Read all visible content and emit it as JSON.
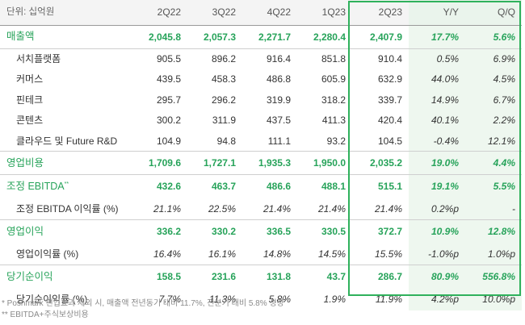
{
  "header": {
    "unit": "단위: 십억원",
    "columns": [
      "2Q22",
      "3Q22",
      "4Q22",
      "1Q23",
      "2Q23",
      "Y/Y",
      "Q/Q"
    ]
  },
  "rows": [
    {
      "label": "매출액",
      "values": [
        "2,045.8",
        "2,057.3",
        "2,271.7",
        "2,280.4",
        "2,407.9",
        "17.7%",
        "5.6%"
      ]
    },
    {
      "label": "서치플랫폼",
      "values": [
        "905.5",
        "896.2",
        "916.4",
        "851.8",
        "910.4",
        "0.5%",
        "6.9%"
      ]
    },
    {
      "label": "커머스",
      "values": [
        "439.5",
        "458.3",
        "486.8",
        "605.9",
        "632.9",
        "44.0%",
        "4.5%"
      ]
    },
    {
      "label": "핀테크",
      "values": [
        "295.7",
        "296.2",
        "319.9",
        "318.2",
        "339.7",
        "14.9%",
        "6.7%"
      ]
    },
    {
      "label": "콘텐츠",
      "values": [
        "300.2",
        "311.9",
        "437.5",
        "411.3",
        "420.4",
        "40.1%",
        "2.2%"
      ]
    },
    {
      "label": "클라우드 및 Future R&D",
      "values": [
        "104.9",
        "94.8",
        "111.1",
        "93.2",
        "104.5",
        "-0.4%",
        "12.1%"
      ]
    },
    {
      "label": "영업비용",
      "values": [
        "1,709.6",
        "1,727.1",
        "1,935.3",
        "1,950.0",
        "2,035.2",
        "19.0%",
        "4.4%"
      ]
    },
    {
      "label": "조정 EBITDA",
      "sup": "**",
      "values": [
        "432.6",
        "463.7",
        "486.6",
        "488.1",
        "515.1",
        "19.1%",
        "5.5%"
      ]
    },
    {
      "label": "조정 EBITDA 이익률 (%)",
      "values": [
        "21.1%",
        "22.5%",
        "21.4%",
        "21.4%",
        "21.4%",
        "0.2%p",
        "-"
      ]
    },
    {
      "label": "영업이익",
      "values": [
        "336.2",
        "330.2",
        "336.5",
        "330.5",
        "372.7",
        "10.9%",
        "12.8%"
      ]
    },
    {
      "label": "영업이익률 (%)",
      "values": [
        "16.4%",
        "16.1%",
        "14.8%",
        "14.5%",
        "15.5%",
        "-1.0%p",
        "1.0%p"
      ]
    },
    {
      "label": "당기순이익",
      "values": [
        "158.5",
        "231.6",
        "131.8",
        "43.7",
        "286.7",
        "80.9%",
        "556.8%"
      ]
    },
    {
      "label": "당기순이익률 (%)",
      "values": [
        "7.7%",
        "11.3%",
        "5.8%",
        "1.9%",
        "11.9%",
        "4.2%p",
        "10.0%p"
      ]
    }
  ],
  "footnotes": [
    "* Poshmark 편입효과 제외 시, 매출액 전년동기 대비 11.7%, 전분기 대비 5.8% 성장",
    "** EBITDA+주식보상비용"
  ],
  "colors": {
    "accent_green": "#27a35a",
    "highlight_border": "#2fb15c",
    "shade": "#eef7ef"
  }
}
